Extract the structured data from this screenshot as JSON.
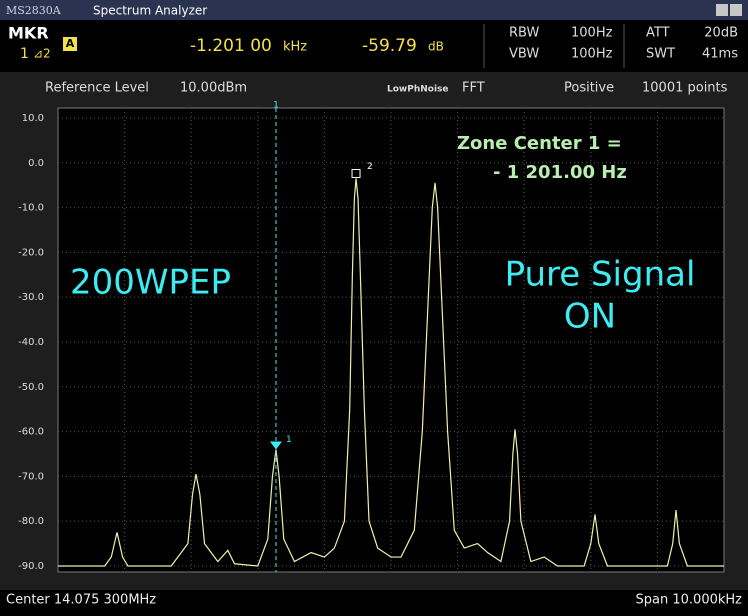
{
  "window": {
    "model": "MS2830A",
    "title": "Spectrum Analyzer"
  },
  "header": {
    "mkr": "MKR",
    "marker_id": "1",
    "delta": "⊿2",
    "mode": "A",
    "freq": "-1.201 00",
    "freq_unit": "kHz",
    "level": "-59.79",
    "level_unit": "dB",
    "rbw_label": "RBW",
    "rbw": "100Hz",
    "vbw_label": "VBW",
    "vbw": "100Hz",
    "att_label": "ATT",
    "att": "20dB",
    "swt_label": "SWT",
    "swt": "41ms"
  },
  "settings": {
    "ref_label": "Reference Level",
    "ref": "10.00dBm",
    "phase_noise": "LowPhNoise",
    "mode": "FFT",
    "detector": "Positive",
    "points": "10001 points"
  },
  "chart_data": {
    "type": "line",
    "x": [
      -5000,
      -4300,
      -4200,
      -4114,
      -4030,
      -3950,
      -3300,
      -3050,
      -2980,
      -2928,
      -2870,
      -2800,
      -2600,
      -2450,
      -2350,
      -2000,
      -1850,
      -1780,
      -1727,
      -1680,
      -1610,
      -1450,
      -1200,
      -1000,
      -850,
      -700,
      -620,
      -580,
      -550,
      -525,
      -495,
      -460,
      -400,
      -330,
      -200,
      0,
      150,
      350,
      470,
      560,
      620,
      661,
      700,
      760,
      850,
      950,
      1100,
      1300,
      1450,
      1650,
      1780,
      1830,
      1862,
      1900,
      1950,
      2100,
      2300,
      2500,
      2900,
      3000,
      3063,
      3120,
      3250,
      4150,
      4230,
      4279,
      4330,
      4450,
      5000
    ],
    "series": [
      {
        "color": "#f2f0a8",
        "values": [
          -90,
          -90,
          -88,
          -82.5,
          -88,
          -90,
          -90,
          -85,
          -74,
          -69.5,
          -74,
          -85,
          -89,
          -86.5,
          -89.5,
          -90,
          -84,
          -70,
          -64,
          -70,
          -84,
          -89,
          -87,
          -88,
          -86,
          -80,
          -55,
          -25,
          -8,
          -3.5,
          -8,
          -25,
          -55,
          -80,
          -86,
          -88,
          -88,
          -82,
          -60,
          -30,
          -10,
          -4.5,
          -10,
          -30,
          -60,
          -82,
          -86,
          -85,
          -87,
          -89,
          -80,
          -65,
          -59.5,
          -65,
          -80,
          -89,
          -88,
          -90,
          -90,
          -85,
          -78.5,
          -85,
          -90,
          -90,
          -85,
          -77.5,
          -85,
          -90,
          -90
        ]
      }
    ],
    "xlim": [
      -5000,
      5000
    ],
    "ylim": [
      -90,
      10
    ],
    "xticks": [
      -4000,
      -3000,
      -2000,
      -1000,
      0,
      1000,
      2000,
      3000,
      4000
    ],
    "yticks": [
      {
        "value": 10,
        "label": "10.0"
      },
      {
        "value": 0,
        "label": "0.0"
      },
      {
        "value": -10,
        "label": "-10.0"
      },
      {
        "value": -20,
        "label": "-20.0"
      },
      {
        "value": -30,
        "label": "-30.0"
      },
      {
        "value": -40,
        "label": "-40.0"
      },
      {
        "value": -50,
        "label": "-50.0"
      },
      {
        "value": -60,
        "label": "-60.0"
      },
      {
        "value": -70,
        "label": "-70.0"
      },
      {
        "value": -80,
        "label": "-80.0"
      },
      {
        "value": -90,
        "label": "-90.0"
      }
    ],
    "grid": true,
    "markers": [
      {
        "label": "1",
        "x": -1727,
        "y": -64
      },
      {
        "label": "2",
        "x": -525,
        "y": -3.5
      }
    ],
    "annotations": [
      "Zone Center 1 =",
      "- 1 201.00 Hz",
      "200WPEP",
      "Pure Signal",
      "ON"
    ]
  },
  "footer": {
    "center": "Center 14.075 300MHz",
    "span": "Span 10.000kHz"
  }
}
